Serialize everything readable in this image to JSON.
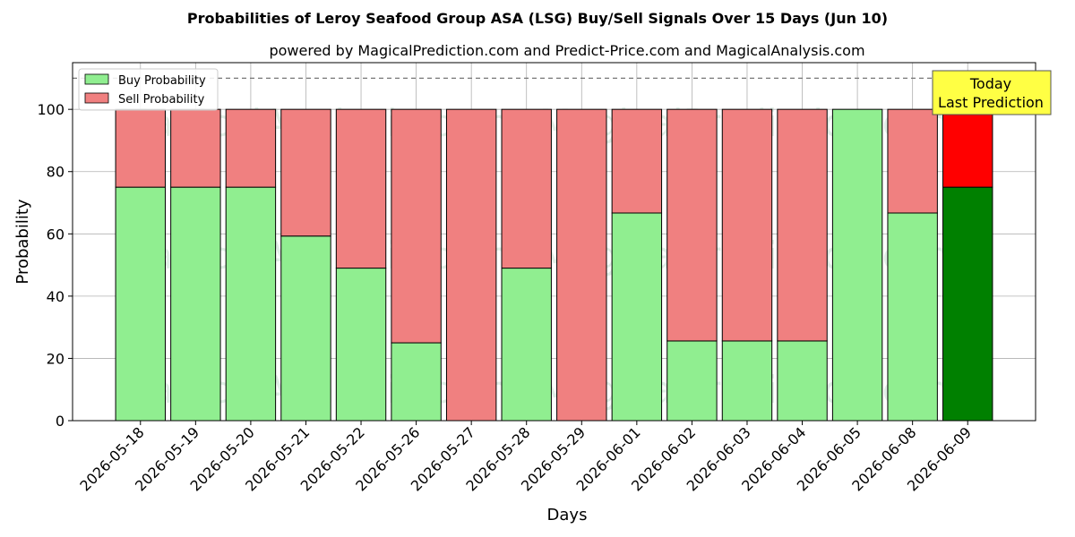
{
  "chart_data": {
    "type": "bar",
    "stacked": true,
    "title": "Probabilities of Leroy Seafood Group ASA (LSG) Buy/Sell Signals Over 15 Days (Jun 10)",
    "subtitle": "powered by MagicalPrediction.com and Predict-Price.com and MagicalAnalysis.com",
    "xlabel": "Days",
    "ylabel": "Probability",
    "ylim": [
      0,
      115
    ],
    "yticks": [
      0,
      20,
      40,
      60,
      80,
      100
    ],
    "grid": true,
    "legend_position": "top-left",
    "reference_line": 110,
    "categories": [
      "2026-05-18",
      "2026-05-19",
      "2026-05-20",
      "2026-05-21",
      "2026-05-22",
      "2026-05-26",
      "2026-05-27",
      "2026-05-28",
      "2026-05-29",
      "2026-06-01",
      "2026-06-02",
      "2026-06-03",
      "2026-06-04",
      "2026-06-05",
      "2026-06-08",
      "2026-06-09"
    ],
    "series": [
      {
        "name": "Buy Probability",
        "color": "#90ee90",
        "values": [
          75,
          75,
          75,
          59.3,
          49,
          25,
          0,
          49,
          0,
          66.7,
          25.6,
          25.6,
          25.6,
          100,
          66.7,
          75
        ]
      },
      {
        "name": "Sell Probability",
        "color": "#f08080",
        "values": [
          25,
          25,
          25,
          40.7,
          51,
          75,
          100,
          51,
          100,
          33.3,
          74.4,
          74.4,
          74.4,
          0,
          33.3,
          25
        ]
      }
    ],
    "highlight": {
      "index": 15,
      "buy_color": "#008000",
      "sell_color": "#ff0000"
    },
    "annotation": {
      "lines": [
        "Today",
        "Last Prediction"
      ],
      "background": "#ffff44"
    },
    "watermarks": [
      "MagicalAnalysis.com",
      "MagicalPrediction.com"
    ]
  }
}
